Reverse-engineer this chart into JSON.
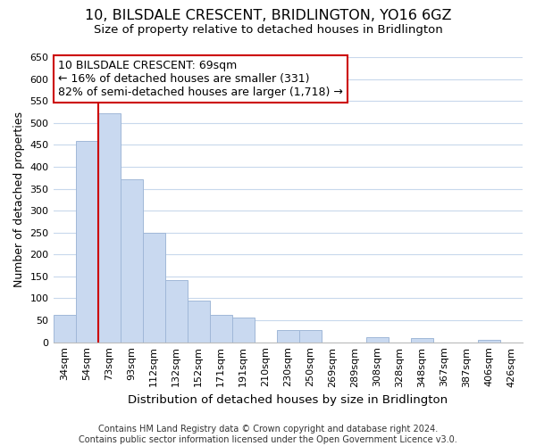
{
  "title": "10, BILSDALE CRESCENT, BRIDLINGTON, YO16 6GZ",
  "subtitle": "Size of property relative to detached houses in Bridlington",
  "xlabel": "Distribution of detached houses by size in Bridlington",
  "ylabel": "Number of detached properties",
  "bar_labels": [
    "34sqm",
    "54sqm",
    "73sqm",
    "93sqm",
    "112sqm",
    "132sqm",
    "152sqm",
    "171sqm",
    "191sqm",
    "210sqm",
    "230sqm",
    "250sqm",
    "269sqm",
    "289sqm",
    "308sqm",
    "328sqm",
    "348sqm",
    "367sqm",
    "387sqm",
    "406sqm",
    "426sqm"
  ],
  "bar_values": [
    62,
    459,
    521,
    371,
    250,
    141,
    95,
    62,
    57,
    0,
    28,
    28,
    0,
    0,
    12,
    0,
    10,
    0,
    0,
    5,
    0
  ],
  "bar_color": "#c9d9f0",
  "bar_edge_color": "#a0b8d8",
  "vline_color": "#cc0000",
  "vline_x": 1.5,
  "ylim": [
    0,
    650
  ],
  "yticks": [
    0,
    50,
    100,
    150,
    200,
    250,
    300,
    350,
    400,
    450,
    500,
    550,
    600,
    650
  ],
  "annotation_box_text": "10 BILSDALE CRESCENT: 69sqm\n← 16% of detached houses are smaller (331)\n82% of semi-detached houses are larger (1,718) →",
  "annotation_box_color": "#ffffff",
  "annotation_box_edge_color": "#cc0000",
  "footer_line1": "Contains HM Land Registry data © Crown copyright and database right 2024.",
  "footer_line2": "Contains public sector information licensed under the Open Government Licence v3.0.",
  "bg_color": "#ffffff",
  "grid_color": "#c8d8ec",
  "title_fontsize": 11.5,
  "subtitle_fontsize": 9.5,
  "xlabel_fontsize": 9.5,
  "ylabel_fontsize": 9,
  "tick_fontsize": 8,
  "annotation_fontsize": 9,
  "footer_fontsize": 7
}
